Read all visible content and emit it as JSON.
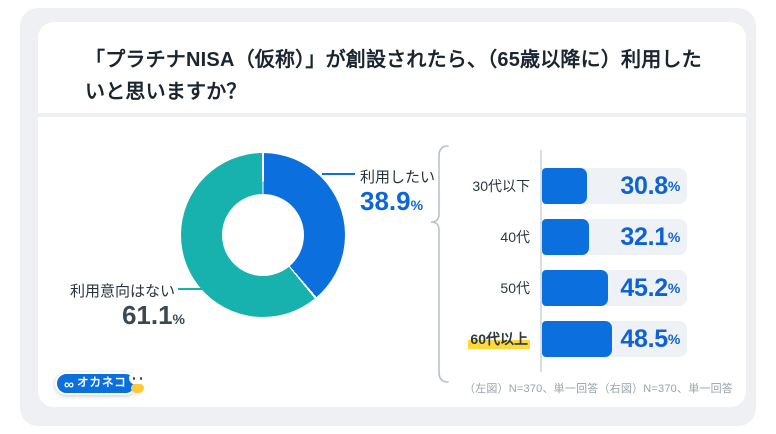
{
  "card": {
    "title": "「プラチナNISA（仮称）」が創設されたら、（65歳以降に）利用したいと思いますか？",
    "footnote": "（左図）N=370、単一回答（右図）N=370、単一回答",
    "logo": {
      "infinity_glyph": "∞",
      "brand_text": "オカネコ",
      "mascot": "okaneko-cat-mascot"
    }
  },
  "colors": {
    "blue": "#0B70DD",
    "teal": "#17B1AE",
    "value_blue": "#0D63D3",
    "value_dark": "#3A4A55",
    "track_gray": "#EEF1F5",
    "panel_gray": "#EEF0F4",
    "highlight_yellow": "#FFD83A",
    "separator_white": "#FFFFFF"
  },
  "chart_data": [
    {
      "type": "pie",
      "subtype": "donut",
      "labels": [
        "利用したい",
        "利用意向はない"
      ],
      "values": [
        38.9,
        61.1
      ],
      "value_labels": [
        "38.9",
        "61.1"
      ],
      "unit": "%",
      "colors": [
        "#0B70DD",
        "#17B1AE"
      ],
      "start_angle": "12-oclock",
      "direction": "clockwise",
      "sample_note": "N=370"
    },
    {
      "type": "bar",
      "orientation": "horizontal",
      "categories": [
        "30代以下",
        "40代",
        "50代",
        "60代以上"
      ],
      "values": [
        30.8,
        32.1,
        45.2,
        48.5
      ],
      "value_labels": [
        "30.8",
        "32.1",
        "45.2",
        "48.5"
      ],
      "unit": "%",
      "xlim": [
        0,
        100
      ],
      "bar_color": "#0B70DD",
      "highlighted_category": "60代以上",
      "sample_note": "N=370"
    }
  ]
}
